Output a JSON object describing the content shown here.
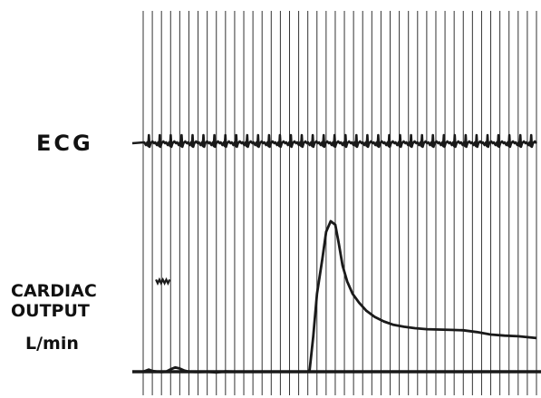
{
  "labels": {
    "ecg": "ECG",
    "cardiac_output_line1": "CARDIAC",
    "cardiac_output_line2": "OUTPUT",
    "unit": "L/min"
  },
  "colors": {
    "ink": "#1a1a1a",
    "background": "#ffffff",
    "timing_line": "#333333"
  },
  "chart_data": {
    "type": "line",
    "title": "",
    "xlabel": "",
    "ylabel": "",
    "grid": false,
    "legend": "none",
    "timing_marks": {
      "count": 44,
      "t_start": 0,
      "t_end": 43
    },
    "series": [
      {
        "name": "ECG",
        "type": "ecg_trace",
        "beats": 36,
        "t_start": 0,
        "t_end": 43
      },
      {
        "name": "CARDIAC OUTPUT",
        "x": [
          0,
          0.6,
          1,
          1.6,
          2,
          2.5,
          3,
          3.5,
          4,
          4.5,
          5,
          6,
          7,
          8,
          9,
          10,
          11,
          12,
          13,
          14,
          15,
          16,
          17,
          18,
          18.2,
          18.6,
          19,
          19.6,
          20,
          20.5,
          21,
          21.4,
          21.8,
          22.3,
          22.9,
          23.6,
          24.4,
          25.3,
          26.3,
          27.3,
          28.5,
          29.7,
          31,
          32.3,
          33.7,
          35,
          36.5,
          38,
          39.5,
          41,
          43
        ],
        "y": [
          0,
          0.06,
          0.02,
          0.0,
          -0.01,
          0.0,
          0.07,
          0.12,
          0.09,
          0.03,
          0.0,
          -0.01,
          0.0,
          -0.02,
          0.01,
          0.0,
          0.0,
          0.0,
          0.0,
          0.0,
          0.0,
          0.0,
          0.0,
          0.0,
          0.05,
          1.0,
          2.2,
          3.2,
          3.95,
          4.25,
          4.15,
          3.6,
          3.0,
          2.55,
          2.2,
          1.95,
          1.72,
          1.55,
          1.42,
          1.33,
          1.27,
          1.23,
          1.2,
          1.19,
          1.18,
          1.17,
          1.12,
          1.05,
          1.02,
          1.0,
          0.95
        ]
      }
    ],
    "calibration_mark": {
      "t_start": 1.4,
      "t_end": 2.9,
      "y": 2.55
    },
    "baseline_y": 0
  }
}
